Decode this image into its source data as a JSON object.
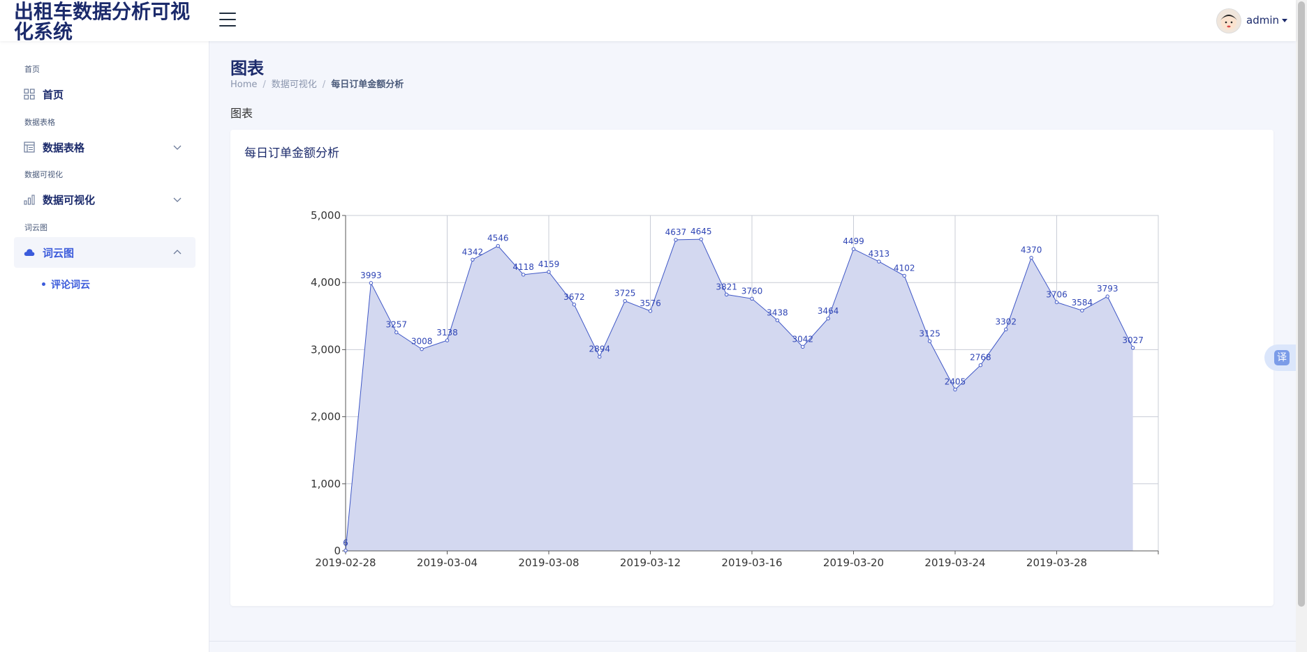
{
  "header": {
    "app_title": "出租车数据分析可视化系统",
    "username": "admin"
  },
  "sidebar": {
    "sections": [
      {
        "label": "首页",
        "item": "首页"
      },
      {
        "label": "数据表格",
        "item": "数据表格"
      },
      {
        "label": "数据可视化",
        "item": "数据可视化"
      },
      {
        "label": "词云图",
        "item": "词云图"
      }
    ],
    "submenu": {
      "item": "评论词云"
    }
  },
  "page": {
    "title": "图表",
    "breadcrumb": [
      "Home",
      "数据可视化",
      "每日订单金额分析"
    ],
    "section_label": "图表",
    "card_title": "每日订单金额分析"
  },
  "translate_label": "译",
  "colors": {
    "accent": "#3b5bdb",
    "series_line": "#3f57c6",
    "area_fill": "#d3d8f0",
    "brand_text": "#1b2a6b"
  },
  "chart_data": {
    "type": "area",
    "title": "",
    "xlabel": "",
    "ylabel": "",
    "x": [
      "2019-02-28",
      "2019-03-01",
      "2019-03-02",
      "2019-03-03",
      "2019-03-04",
      "2019-03-05",
      "2019-03-06",
      "2019-03-07",
      "2019-03-08",
      "2019-03-09",
      "2019-03-10",
      "2019-03-11",
      "2019-03-12",
      "2019-03-13",
      "2019-03-14",
      "2019-03-15",
      "2019-03-16",
      "2019-03-17",
      "2019-03-18",
      "2019-03-19",
      "2019-03-20",
      "2019-03-21",
      "2019-03-22",
      "2019-03-23",
      "2019-03-24",
      "2019-03-25",
      "2019-03-26",
      "2019-03-27",
      "2019-03-28",
      "2019-03-29",
      "2019-03-30",
      "2019-03-31",
      "2019-04-01"
    ],
    "values": [
      6,
      3993,
      3257,
      3008,
      3138,
      4342,
      4546,
      4118,
      4159,
      3672,
      2894,
      3725,
      3576,
      4637,
      4645,
      3821,
      3760,
      3438,
      3042,
      3464,
      4499,
      4313,
      4102,
      3125,
      2405,
      2768,
      3302,
      4370,
      3706,
      3584,
      3793,
      3027,
      null
    ],
    "x_tick_labels": [
      "2019-02-28",
      "2019-03-04",
      "2019-03-08",
      "2019-03-12",
      "2019-03-16",
      "2019-03-20",
      "2019-03-24",
      "2019-03-28"
    ],
    "y_ticks": [
      0,
      1000,
      2000,
      3000,
      4000,
      5000
    ],
    "ylim": [
      0,
      5000
    ],
    "data_labels": true,
    "grid": true
  }
}
